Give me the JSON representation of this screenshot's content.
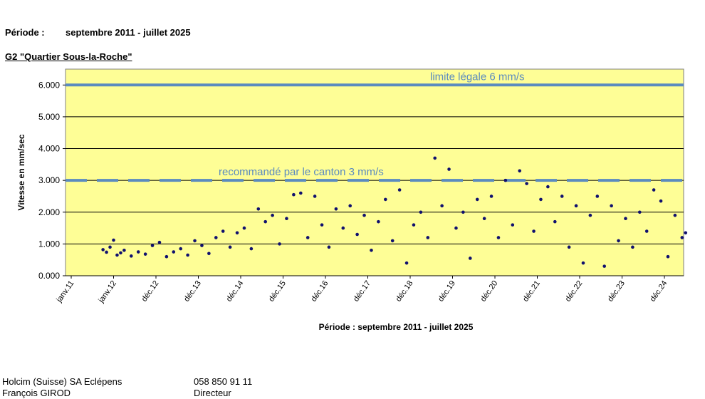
{
  "header": {
    "title": "",
    "periode_label": "Période :",
    "periode_value": "septembre 2011 - juillet  2025",
    "site": "G2 \"Quartier Sous-la-Roche\""
  },
  "chart_data": {
    "type": "scatter",
    "title": "",
    "xlabel": "Période : septembre 2011 - juillet 2025",
    "ylabel": "Vitesse en mm/sec",
    "x_tick_labels": [
      "janv.11",
      "janv.12",
      "déc.12",
      "déc.13",
      "déc.14",
      "déc.15",
      "déc.16",
      "déc.17",
      "déc.18",
      "déc.19",
      "déc.20",
      "déc.21",
      "déc.22",
      "déc.23",
      "déc.24"
    ],
    "y_tick_labels": [
      "0.000",
      "1.000",
      "2.000",
      "3.000",
      "4.000",
      "5.000",
      "6.000"
    ],
    "ylim": [
      0,
      6.5
    ],
    "grid": true,
    "reference_lines": [
      {
        "label": "limite légale 6 mm/s",
        "value": 6,
        "style": "solid"
      },
      {
        "label": "recommandé par le canton 3 mm/s",
        "value": 3,
        "style": "dashed"
      }
    ],
    "series": [
      {
        "values": [
          [
            "2011-10",
            0.82
          ],
          [
            "2011-11",
            0.74
          ],
          [
            "2011-12",
            0.9
          ],
          [
            "2012-01",
            1.12
          ],
          [
            "2012-02",
            0.65
          ],
          [
            "2012-03",
            0.72
          ],
          [
            "2012-04",
            0.8
          ],
          [
            "2012-06",
            0.62
          ],
          [
            "2012-08",
            0.75
          ],
          [
            "2012-10",
            0.68
          ],
          [
            "2012-12",
            0.95
          ],
          [
            "2013-02",
            1.05
          ],
          [
            "2013-04",
            0.6
          ],
          [
            "2013-06",
            0.75
          ],
          [
            "2013-08",
            0.85
          ],
          [
            "2013-10",
            0.65
          ],
          [
            "2013-12",
            1.1
          ],
          [
            "2014-02",
            0.95
          ],
          [
            "2014-04",
            0.7
          ],
          [
            "2014-06",
            1.2
          ],
          [
            "2014-08",
            1.4
          ],
          [
            "2014-10",
            0.9
          ],
          [
            "2014-12",
            1.35
          ],
          [
            "2015-02",
            1.5
          ],
          [
            "2015-04",
            0.85
          ],
          [
            "2015-06",
            2.1
          ],
          [
            "2015-08",
            1.7
          ],
          [
            "2015-10",
            1.9
          ],
          [
            "2015-12",
            1.0
          ],
          [
            "2016-02",
            1.8
          ],
          [
            "2016-04",
            2.55
          ],
          [
            "2016-06",
            2.6
          ],
          [
            "2016-08",
            1.2
          ],
          [
            "2016-10",
            2.5
          ],
          [
            "2016-12",
            1.6
          ],
          [
            "2017-02",
            0.9
          ],
          [
            "2017-04",
            2.1
          ],
          [
            "2017-06",
            1.5
          ],
          [
            "2017-08",
            2.2
          ],
          [
            "2017-10",
            1.3
          ],
          [
            "2017-12",
            1.9
          ],
          [
            "2018-02",
            0.8
          ],
          [
            "2018-04",
            1.7
          ],
          [
            "2018-06",
            2.4
          ],
          [
            "2018-08",
            1.1
          ],
          [
            "2018-10",
            2.7
          ],
          [
            "2018-12",
            0.4
          ],
          [
            "2019-02",
            1.6
          ],
          [
            "2019-04",
            2.0
          ],
          [
            "2019-06",
            1.2
          ],
          [
            "2019-08",
            3.7
          ],
          [
            "2019-10",
            2.2
          ],
          [
            "2019-12",
            3.35
          ],
          [
            "2020-02",
            1.5
          ],
          [
            "2020-04",
            2.0
          ],
          [
            "2020-06",
            0.55
          ],
          [
            "2020-08",
            2.4
          ],
          [
            "2020-10",
            1.8
          ],
          [
            "2020-12",
            2.5
          ],
          [
            "2021-02",
            1.2
          ],
          [
            "2021-04",
            3.0
          ],
          [
            "2021-06",
            1.6
          ],
          [
            "2021-08",
            3.3
          ],
          [
            "2021-10",
            2.9
          ],
          [
            "2021-12",
            1.4
          ],
          [
            "2022-02",
            2.4
          ],
          [
            "2022-04",
            2.8
          ],
          [
            "2022-06",
            1.7
          ],
          [
            "2022-08",
            2.5
          ],
          [
            "2022-10",
            0.9
          ],
          [
            "2022-12",
            2.2
          ],
          [
            "2023-02",
            0.4
          ],
          [
            "2023-04",
            1.9
          ],
          [
            "2023-06",
            2.5
          ],
          [
            "2023-08",
            0.3
          ],
          [
            "2023-10",
            2.2
          ],
          [
            "2023-12",
            1.1
          ],
          [
            "2024-02",
            1.8
          ],
          [
            "2024-04",
            0.9
          ],
          [
            "2024-06",
            2.0
          ],
          [
            "2024-08",
            1.4
          ],
          [
            "2024-10",
            2.7
          ],
          [
            "2024-12",
            2.35
          ],
          [
            "2025-02",
            0.6
          ],
          [
            "2025-04",
            1.9
          ],
          [
            "2025-06",
            1.2
          ],
          [
            "2025-07",
            1.35
          ]
        ]
      }
    ],
    "colors": {
      "plot_bg": "#fefe96",
      "points": "#10106e",
      "reference": "#5b8bbf",
      "grid": "#000000"
    }
  },
  "footer": {
    "company": "Holcim (Suisse) SA Eclépens",
    "name": "François GIROD",
    "phone": "058 850 91 11",
    "role": "Directeur"
  }
}
